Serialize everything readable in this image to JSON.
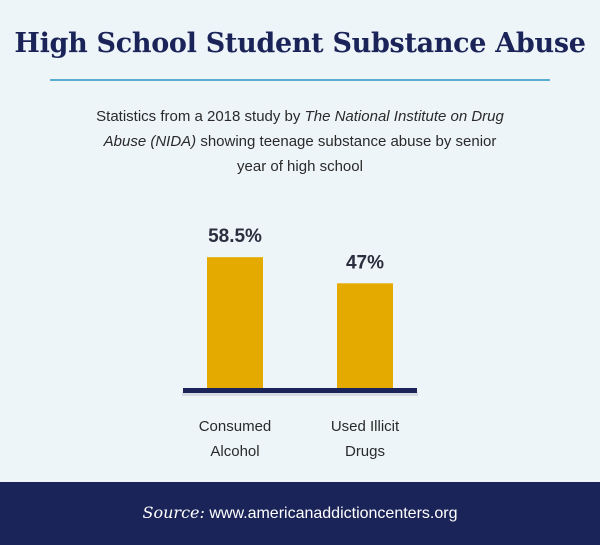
{
  "header": {
    "title": "High School Student Substance Abuse"
  },
  "subtitle": {
    "part1": "Statistics from a 2018 study by ",
    "italic": "The National Institute on Drug Abuse (NIDA)",
    "part2": " showing teenage substance abuse by senior year of high school"
  },
  "chart_data": {
    "type": "bar",
    "categories": [
      [
        "Consumed",
        "Alcohol"
      ],
      [
        "Used Illicit",
        "Drugs"
      ]
    ],
    "values": [
      58.5,
      47
    ],
    "value_labels": [
      "58.5%",
      "47%"
    ],
    "ylim": [
      0,
      100
    ],
    "grid": false,
    "bar_color": "#e5aa00",
    "axis_color": "#1b2458"
  },
  "footer": {
    "source_label": "Source:",
    "source_url": "www.americanaddictioncenters.org"
  }
}
